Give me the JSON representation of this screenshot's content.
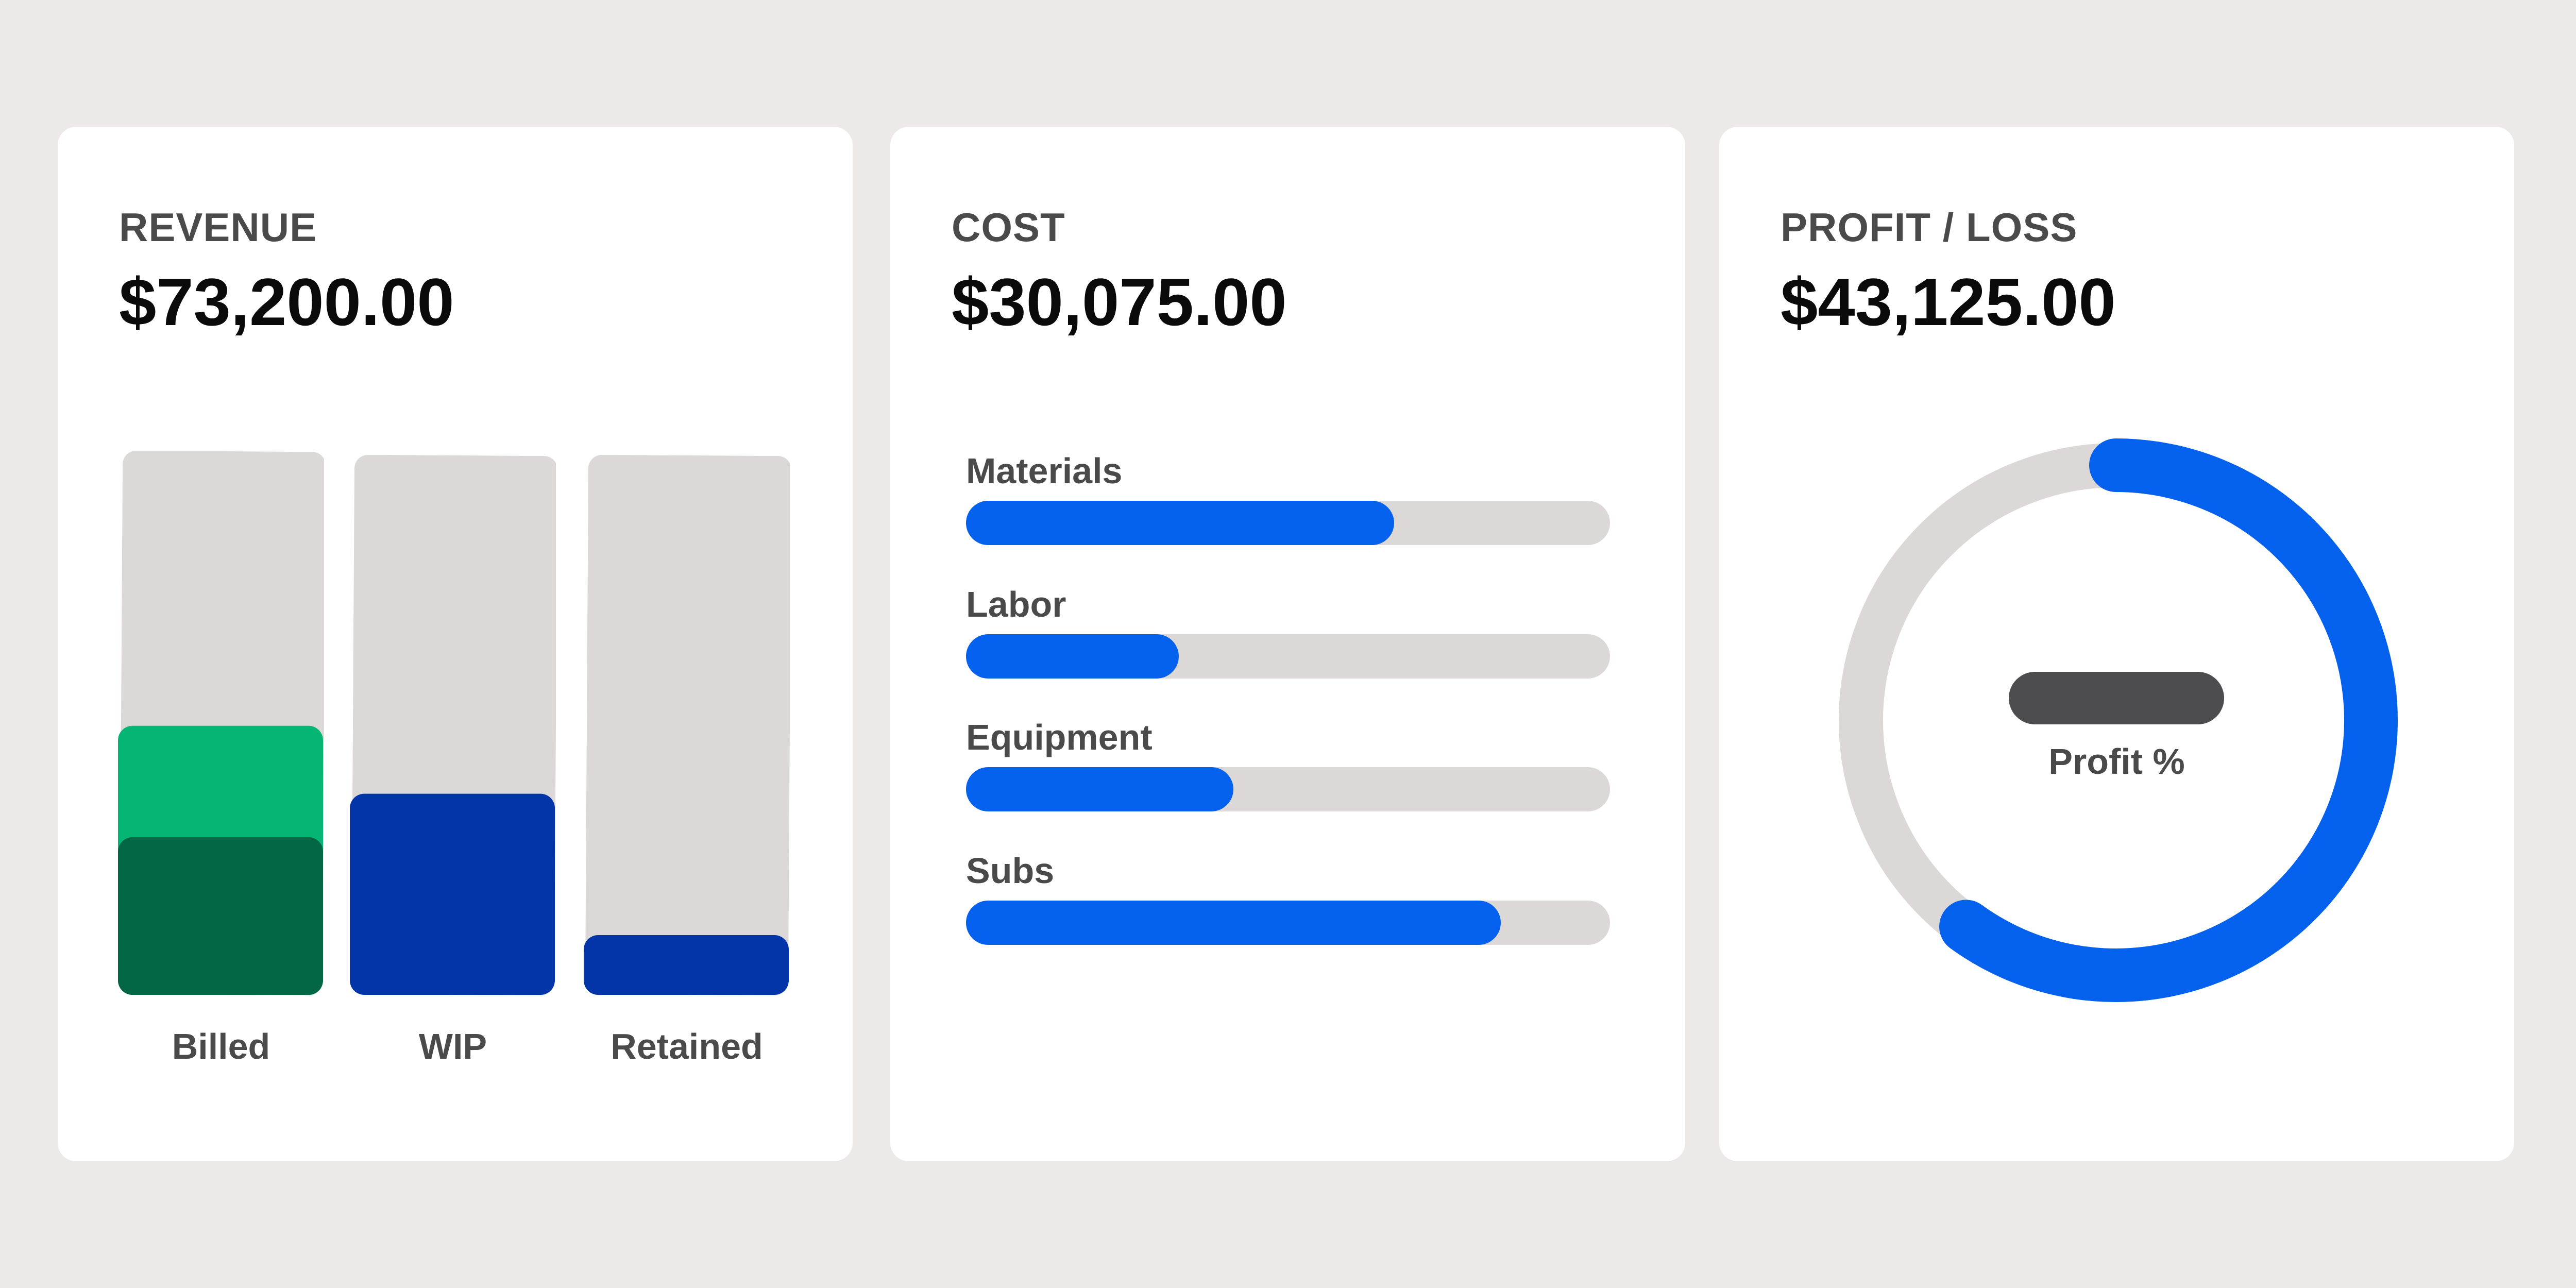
{
  "revenue": {
    "label": "REVENUE",
    "value": "$73,200.00",
    "columns": [
      {
        "label": "Billed",
        "segments": [
          {
            "fraction": 0.495,
            "color": "#05b573"
          },
          {
            "fraction": 0.29,
            "color": "#036745"
          }
        ]
      },
      {
        "label": "WIP",
        "segments": [
          {
            "fraction": 0.37,
            "color": "#0335a9"
          }
        ]
      },
      {
        "label": "Retained",
        "segments": [
          {
            "fraction": 0.11,
            "color": "#0335a9"
          }
        ]
      }
    ],
    "track_color": "#dcd8d7"
  },
  "cost": {
    "label": "COST",
    "value": "$30,075.00",
    "items": [
      {
        "label": "Materials",
        "fraction": 0.665
      },
      {
        "label": "Labor",
        "fraction": 0.33
      },
      {
        "label": "Equipment",
        "fraction": 0.415
      },
      {
        "label": "Subs",
        "fraction": 0.83
      }
    ],
    "bar_color": "#0461ee"
  },
  "profit": {
    "label": "PROFIT / LOSS",
    "value": "$43,125.00",
    "caption": "Profit %",
    "fraction": 0.6,
    "ring_color": "#0461ee",
    "track_color": "#dcd8d7"
  }
}
